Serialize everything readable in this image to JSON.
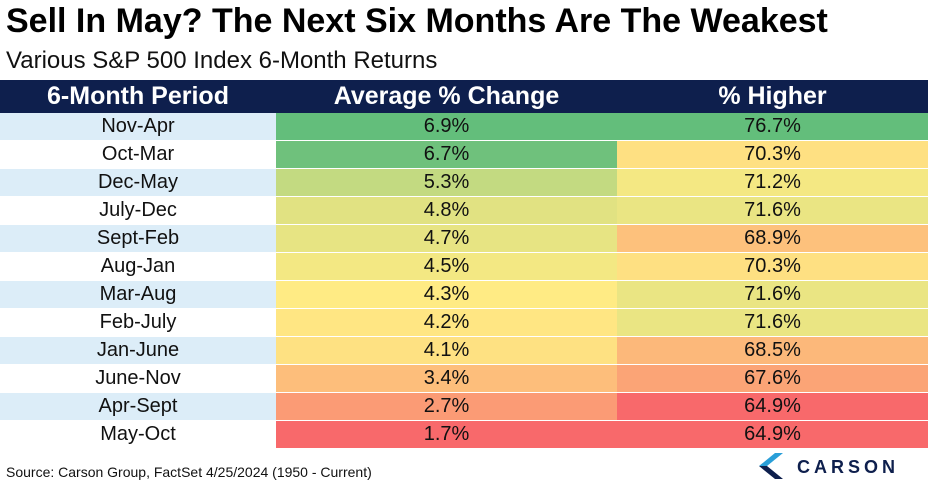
{
  "title": "Sell In May? The Next Six Months Are The Weakest",
  "subtitle": "Various S&P 500 Index 6-Month Returns",
  "source": "Source: Carson Group, FactSet 4/25/2024 (1950 - Current)",
  "logo_text": "CARSON",
  "colors": {
    "header_bg": "#0e1f4d",
    "green": "#63be7b",
    "yellow": "#ffeb84",
    "red": "#f8696b",
    "period_band": "#dcedf8"
  },
  "chart_data": {
    "type": "table",
    "columns": [
      "6-Month Period",
      "Average % Change",
      "% Higher"
    ],
    "rows": [
      {
        "period": "Nov-Apr",
        "avg_change": "6.9%",
        "avg_value": 6.9,
        "pct_higher": "76.7%",
        "higher_value": 76.7
      },
      {
        "period": "Oct-Mar",
        "avg_change": "6.7%",
        "avg_value": 6.7,
        "pct_higher": "70.3%",
        "higher_value": 70.3
      },
      {
        "period": "Dec-May",
        "avg_change": "5.3%",
        "avg_value": 5.3,
        "pct_higher": "71.2%",
        "higher_value": 71.2
      },
      {
        "period": "July-Dec",
        "avg_change": "4.8%",
        "avg_value": 4.8,
        "pct_higher": "71.6%",
        "higher_value": 71.6
      },
      {
        "period": "Sept-Feb",
        "avg_change": "4.7%",
        "avg_value": 4.7,
        "pct_higher": "68.9%",
        "higher_value": 68.9
      },
      {
        "period": "Aug-Jan",
        "avg_change": "4.5%",
        "avg_value": 4.5,
        "pct_higher": "70.3%",
        "higher_value": 70.3
      },
      {
        "period": "Mar-Aug",
        "avg_change": "4.3%",
        "avg_value": 4.3,
        "pct_higher": "71.6%",
        "higher_value": 71.6
      },
      {
        "period": "Feb-July",
        "avg_change": "4.2%",
        "avg_value": 4.2,
        "pct_higher": "71.6%",
        "higher_value": 71.6
      },
      {
        "period": "Jan-June",
        "avg_change": "4.1%",
        "avg_value": 4.1,
        "pct_higher": "68.5%",
        "higher_value": 68.5
      },
      {
        "period": "June-Nov",
        "avg_change": "3.4%",
        "avg_value": 3.4,
        "pct_higher": "67.6%",
        "higher_value": 67.6
      },
      {
        "period": "Apr-Sept",
        "avg_change": "2.7%",
        "avg_value": 2.7,
        "pct_higher": "64.9%",
        "higher_value": 64.9
      },
      {
        "period": "May-Oct",
        "avg_change": "1.7%",
        "avg_value": 1.7,
        "pct_higher": "64.9%",
        "higher_value": 64.9
      }
    ]
  }
}
